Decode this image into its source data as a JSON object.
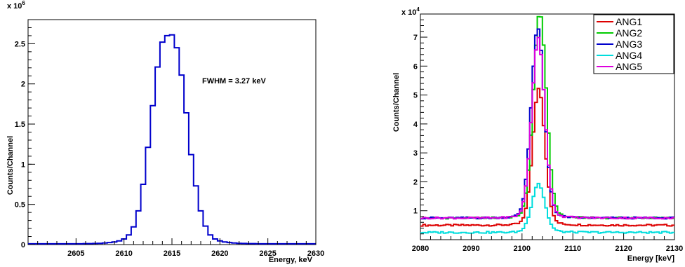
{
  "chart_data": [
    {
      "type": "line",
      "xlabel": "Energy, keV",
      "ylabel": "Counts/Channel",
      "y_multiplier": "x 10",
      "y_exponent": "6",
      "annotation": "FWHM = 3.27 keV",
      "xlim": [
        2600,
        2630
      ],
      "ylim": [
        0,
        2.8
      ],
      "x_ticks": [
        2605,
        2610,
        2615,
        2620,
        2625,
        2630
      ],
      "x_tick_labels": [
        "2605",
        "2610",
        "2615",
        "2620",
        "2625",
        "2630"
      ],
      "y_ticks": [
        0,
        0.5,
        1,
        1.5,
        2,
        2.5
      ],
      "y_tick_labels": [
        "0",
        "0.5",
        "1",
        "1.5",
        "2",
        "2.5"
      ],
      "grid": false,
      "step": true,
      "series": [
        {
          "color": "#0000cc",
          "x": [
            2600.0,
            2600.5,
            2601.0,
            2601.5,
            2602.0,
            2602.5,
            2603.0,
            2603.5,
            2604.0,
            2604.5,
            2605.0,
            2605.5,
            2606.0,
            2606.5,
            2607.0,
            2607.5,
            2608.0,
            2608.5,
            2609.0,
            2609.5,
            2610.0,
            2610.5,
            2611.0,
            2611.5,
            2612.0,
            2612.5,
            2613.0,
            2613.5,
            2614.0,
            2614.5,
            2615.0,
            2615.5,
            2616.0,
            2616.5,
            2617.0,
            2617.5,
            2618.0,
            2618.5,
            2619.0,
            2619.5,
            2620.0,
            2620.5,
            2621.0,
            2621.5,
            2622.0,
            2622.5,
            2623.0,
            2623.5,
            2624.0,
            2624.5,
            2625.0,
            2625.5,
            2626.0,
            2626.5,
            2627.0,
            2627.5,
            2628.0,
            2628.5,
            2629.0,
            2629.5,
            2630.0
          ],
          "y": [
            0.01,
            0.01,
            0.01,
            0.01,
            0.01,
            0.01,
            0.01,
            0.01,
            0.01,
            0.01,
            0.01,
            0.01,
            0.012,
            0.012,
            0.014,
            0.016,
            0.02,
            0.025,
            0.032,
            0.045,
            0.07,
            0.12,
            0.22,
            0.42,
            0.75,
            1.21,
            1.73,
            2.21,
            2.52,
            2.6,
            2.61,
            2.45,
            2.11,
            1.64,
            1.12,
            0.73,
            0.42,
            0.23,
            0.12,
            0.07,
            0.045,
            0.032,
            0.025,
            0.02,
            0.016,
            0.014,
            0.012,
            0.012,
            0.01,
            0.01,
            0.01,
            0.01,
            0.01,
            0.01,
            0.01,
            0.01,
            0.01,
            0.01,
            0.01,
            0.01,
            0.01
          ]
        }
      ]
    },
    {
      "type": "line",
      "xlabel": "Energy [keV]",
      "ylabel": "Counts/Channel",
      "y_multiplier": "x 10",
      "y_exponent": "4",
      "xlim": [
        2080,
        2130
      ],
      "ylim": [
        0,
        7.8
      ],
      "x_ticks": [
        2080,
        2090,
        2100,
        2110,
        2120,
        2130
      ],
      "x_tick_labels": [
        "2080",
        "2090",
        "2100",
        "2110",
        "2120",
        "2130"
      ],
      "y_ticks": [
        1,
        2,
        3,
        4,
        5,
        6,
        7
      ],
      "y_tick_labels": [
        "1",
        "2",
        "3",
        "4",
        "5",
        "6",
        "7"
      ],
      "grid": false,
      "step": true,
      "legend": "top-right",
      "series": [
        {
          "name": "ANG1",
          "color": "#dd0000",
          "baseline": 0.5,
          "amplitude": 4.4,
          "center": 2103.3,
          "sigma": 1.2,
          "tail": 1.1
        },
        {
          "name": "ANG2",
          "color": "#00cc00",
          "baseline": 0.75,
          "amplitude": 6.6,
          "center": 2103.5,
          "sigma": 1.3,
          "tail": 1.1
        },
        {
          "name": "ANG3",
          "color": "#0000cc",
          "baseline": 0.75,
          "amplitude": 6.1,
          "center": 2103.1,
          "sigma": 1.3,
          "tail": 1.1
        },
        {
          "name": "ANG4",
          "color": "#00dddd",
          "baseline": 0.25,
          "amplitude": 1.55,
          "center": 2103.2,
          "sigma": 1.3,
          "tail": 1.1
        },
        {
          "name": "ANG5",
          "color": "#dd00dd",
          "baseline": 0.75,
          "amplitude": 5.75,
          "center": 2103.2,
          "sigma": 1.3,
          "tail": 1.1
        }
      ]
    }
  ]
}
